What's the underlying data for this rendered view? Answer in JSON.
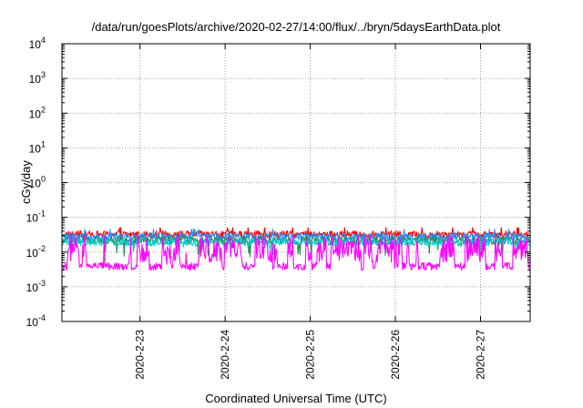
{
  "chart_data": {
    "type": "line",
    "title": "/data/run/goesPlots/archive/2020-02-27/14:00/flux/../bryn/5daysEarthData.plot",
    "xlabel": "Coordinated Universal Time (UTC)",
    "ylabel": "cGy/day",
    "yscale": "log",
    "ylim": [
      0.0001,
      10000
    ],
    "y_ticks": [
      {
        "value": 0.0001,
        "base": "10",
        "exp": "-4"
      },
      {
        "value": 0.001,
        "base": "10",
        "exp": "-3"
      },
      {
        "value": 0.01,
        "base": "10",
        "exp": "-2"
      },
      {
        "value": 0.1,
        "base": "10",
        "exp": "-1"
      },
      {
        "value": 1,
        "base": "10",
        "exp": "0"
      },
      {
        "value": 10,
        "base": "10",
        "exp": "1"
      },
      {
        "value": 100,
        "base": "10",
        "exp": "2"
      },
      {
        "value": 1000,
        "base": "10",
        "exp": "3"
      },
      {
        "value": 10000,
        "base": "10",
        "exp": "4"
      }
    ],
    "xlim": [
      "2020-02-22 02:00",
      "2020-02-27 14:00"
    ],
    "x_ticks": [
      "2020-2-23",
      "2020-2-24",
      "2020-2-25",
      "2020-2-26",
      "2020-2-27"
    ],
    "grid": true,
    "legend": "none",
    "series": [
      {
        "color": "#ff0000",
        "baseline": 0.03,
        "peak": 0.05,
        "trough": 0.02
      },
      {
        "color": "#1e90ff",
        "baseline": 0.025,
        "peak": 0.045,
        "trough": 0.016
      },
      {
        "color": "#2e8b57",
        "baseline": 0.02,
        "peak": 0.035,
        "trough": 0.007
      },
      {
        "color": "#00ced1",
        "baseline": 0.018,
        "peak": 0.03,
        "trough": 0.008
      },
      {
        "color": "#ff00ff",
        "baseline": 0.005,
        "peak": 0.03,
        "trough": 0.003
      }
    ]
  }
}
